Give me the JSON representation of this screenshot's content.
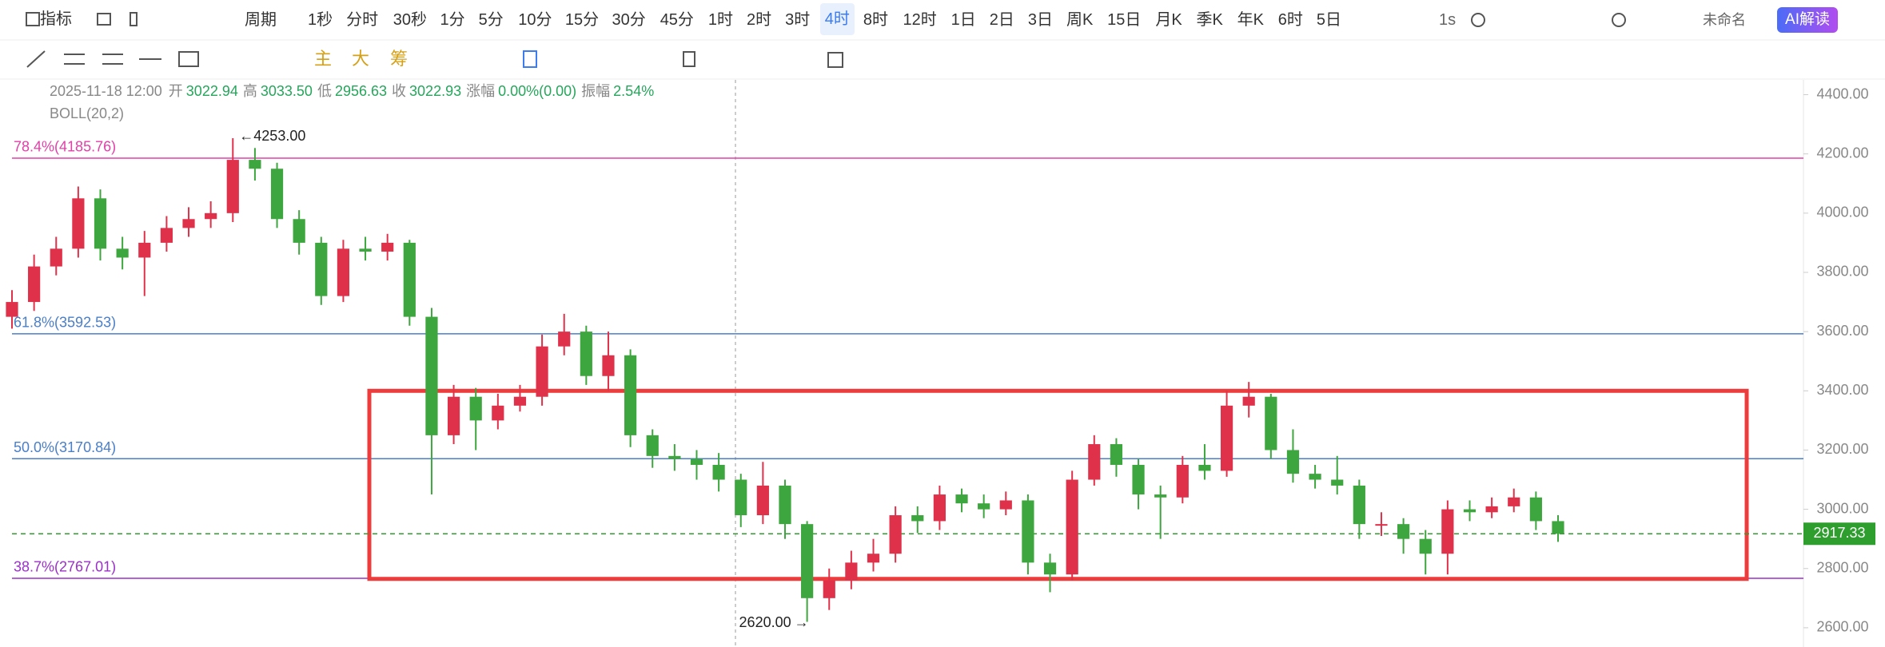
{
  "toolbar": {
    "indicator": "指标",
    "period": "周期",
    "intervals": [
      "1秒",
      "分时",
      "30秒",
      "1分",
      "5分",
      "10分",
      "15分",
      "30分",
      "45分",
      "1时",
      "2时",
      "3时",
      "4时",
      "8时",
      "12时",
      "1日",
      "2日",
      "3日",
      "周K",
      "15日",
      "月K",
      "季K",
      "年K",
      "6时",
      "5日"
    ],
    "active_index": 12,
    "speed": "1s",
    "workspace": "未命名",
    "ai_button": "AI解读"
  },
  "drawing_toolbar": {
    "labels": [
      "主",
      "大",
      "筹"
    ]
  },
  "chart_data": {
    "type": "candlestick",
    "info": {
      "datetime": "2025-11-18 12:00",
      "fields": [
        {
          "name": "开",
          "value": "3022.94"
        },
        {
          "name": "高",
          "value": "3033.50"
        },
        {
          "name": "低",
          "value": "2956.63"
        },
        {
          "name": "收",
          "value": "3022.93"
        },
        {
          "name": "涨幅",
          "value": "0.00%(0.00)"
        },
        {
          "name": "振幅",
          "value": "2.54%"
        }
      ],
      "indicator": "BOLL(20,2)"
    },
    "ylim": [
      2535,
      4450
    ],
    "yticks": [
      {
        "value": 2600,
        "label": "2600.00"
      },
      {
        "value": 2800,
        "label": "2800.00"
      },
      {
        "value": 3000,
        "label": "3000.00"
      },
      {
        "value": 3200,
        "label": "3200.00"
      },
      {
        "value": 3400,
        "label": "3400.00"
      },
      {
        "value": 3600,
        "label": "3600.00"
      },
      {
        "value": 3800,
        "label": "3800.00"
      },
      {
        "value": 4000,
        "label": "4000.00"
      },
      {
        "value": 4200,
        "label": "4200.00"
      },
      {
        "value": 4400,
        "label": "4400.00"
      }
    ],
    "up_color": "#e0314b",
    "down_color": "#3ea63e",
    "series": {
      "open": [
        3650,
        3700,
        3820,
        3880,
        4050,
        3880,
        3850,
        3900,
        3950,
        3980,
        4000,
        4180,
        4150,
        3980,
        3900,
        3720,
        3880,
        3870,
        3900,
        3650,
        3250,
        3380,
        3300,
        3350,
        3380,
        3550,
        3600,
        3450,
        3520,
        3250,
        3180,
        3170,
        3150,
        3100,
        2980,
        3080,
        2950,
        2700,
        2760,
        2820,
        2850,
        2980,
        2960,
        3050,
        3020,
        3000,
        3030,
        2820,
        2780,
        3100,
        3220,
        3150,
        3050,
        3040,
        3150,
        3130,
        3350,
        3380,
        3200,
        3120,
        3100,
        3080,
        2950,
        2950,
        2900,
        2850,
        3000,
        2990,
        3010,
        3040,
        2960
      ],
      "high": [
        3740,
        3860,
        3920,
        4090,
        4080,
        3920,
        3940,
        3990,
        4020,
        4040,
        4253,
        4220,
        4170,
        4010,
        3920,
        3910,
        3920,
        3930,
        3910,
        3680,
        3420,
        3410,
        3390,
        3420,
        3590,
        3660,
        3620,
        3600,
        3540,
        3270,
        3220,
        3200,
        3190,
        3120,
        3160,
        3100,
        2960,
        2800,
        2860,
        2900,
        3010,
        3010,
        3080,
        3070,
        3050,
        3060,
        3050,
        2850,
        3130,
        3250,
        3240,
        3170,
        3080,
        3180,
        3220,
        3400,
        3430,
        3390,
        3270,
        3150,
        3180,
        3100,
        2990,
        2970,
        2930,
        3030,
        3030,
        3040,
        3070,
        3060,
        2980
      ],
      "low": [
        3610,
        3670,
        3790,
        3850,
        3840,
        3810,
        3720,
        3870,
        3920,
        3950,
        3970,
        4110,
        3950,
        3860,
        3690,
        3700,
        3840,
        3840,
        3620,
        3050,
        3220,
        3200,
        3270,
        3330,
        3350,
        3520,
        3420,
        3400,
        3210,
        3140,
        3130,
        3100,
        3060,
        2940,
        2950,
        2900,
        2620,
        2660,
        2730,
        2790,
        2820,
        2920,
        2930,
        2990,
        2970,
        2980,
        2780,
        2720,
        2760,
        3080,
        3110,
        3000,
        2900,
        3020,
        3100,
        3110,
        3310,
        3170,
        3090,
        3070,
        3050,
        2900,
        2910,
        2850,
        2780,
        2780,
        2960,
        2970,
        2990,
        2930,
        2890
      ],
      "close": [
        3700,
        3820,
        3880,
        4050,
        3880,
        3850,
        3900,
        3950,
        3980,
        4000,
        4180,
        4150,
        3980,
        3900,
        3720,
        3880,
        3870,
        3900,
        3650,
        3250,
        3380,
        3300,
        3350,
        3380,
        3550,
        3600,
        3450,
        3520,
        3250,
        3180,
        3170,
        3150,
        3100,
        2980,
        3080,
        2950,
        2700,
        2760,
        2820,
        2850,
        2980,
        2960,
        3050,
        3020,
        3000,
        3030,
        2820,
        2780,
        3100,
        3220,
        3150,
        3050,
        3040,
        3150,
        3130,
        3350,
        3380,
        3200,
        3120,
        3100,
        3080,
        2950,
        2950,
        2900,
        2850,
        3000,
        2990,
        3010,
        3040,
        2960,
        2917.33
      ]
    },
    "fib_levels": [
      {
        "label": "78.4%(4185.76)",
        "value": 4185.76,
        "color": "#e040a8"
      },
      {
        "label": "61.8%(3592.53)",
        "value": 3592.53,
        "color": "#4a7fc8"
      },
      {
        "label": "50.0%(3170.84)",
        "value": 3170.84,
        "color": "#4a7fc8"
      },
      {
        "label": "38.7%(2767.01)",
        "value": 2767.01,
        "color": "#9b30c8"
      }
    ],
    "box": {
      "top": 3400,
      "bottom": 2765,
      "color": "#ee3b3b"
    },
    "last_price": {
      "value": 2917.33,
      "label": "2917.33",
      "color": "#2e9e2e"
    },
    "annotations": [
      {
        "value": 4253,
        "label": "4253.00"
      },
      {
        "value": 2620,
        "label": "2620.00"
      }
    ]
  }
}
